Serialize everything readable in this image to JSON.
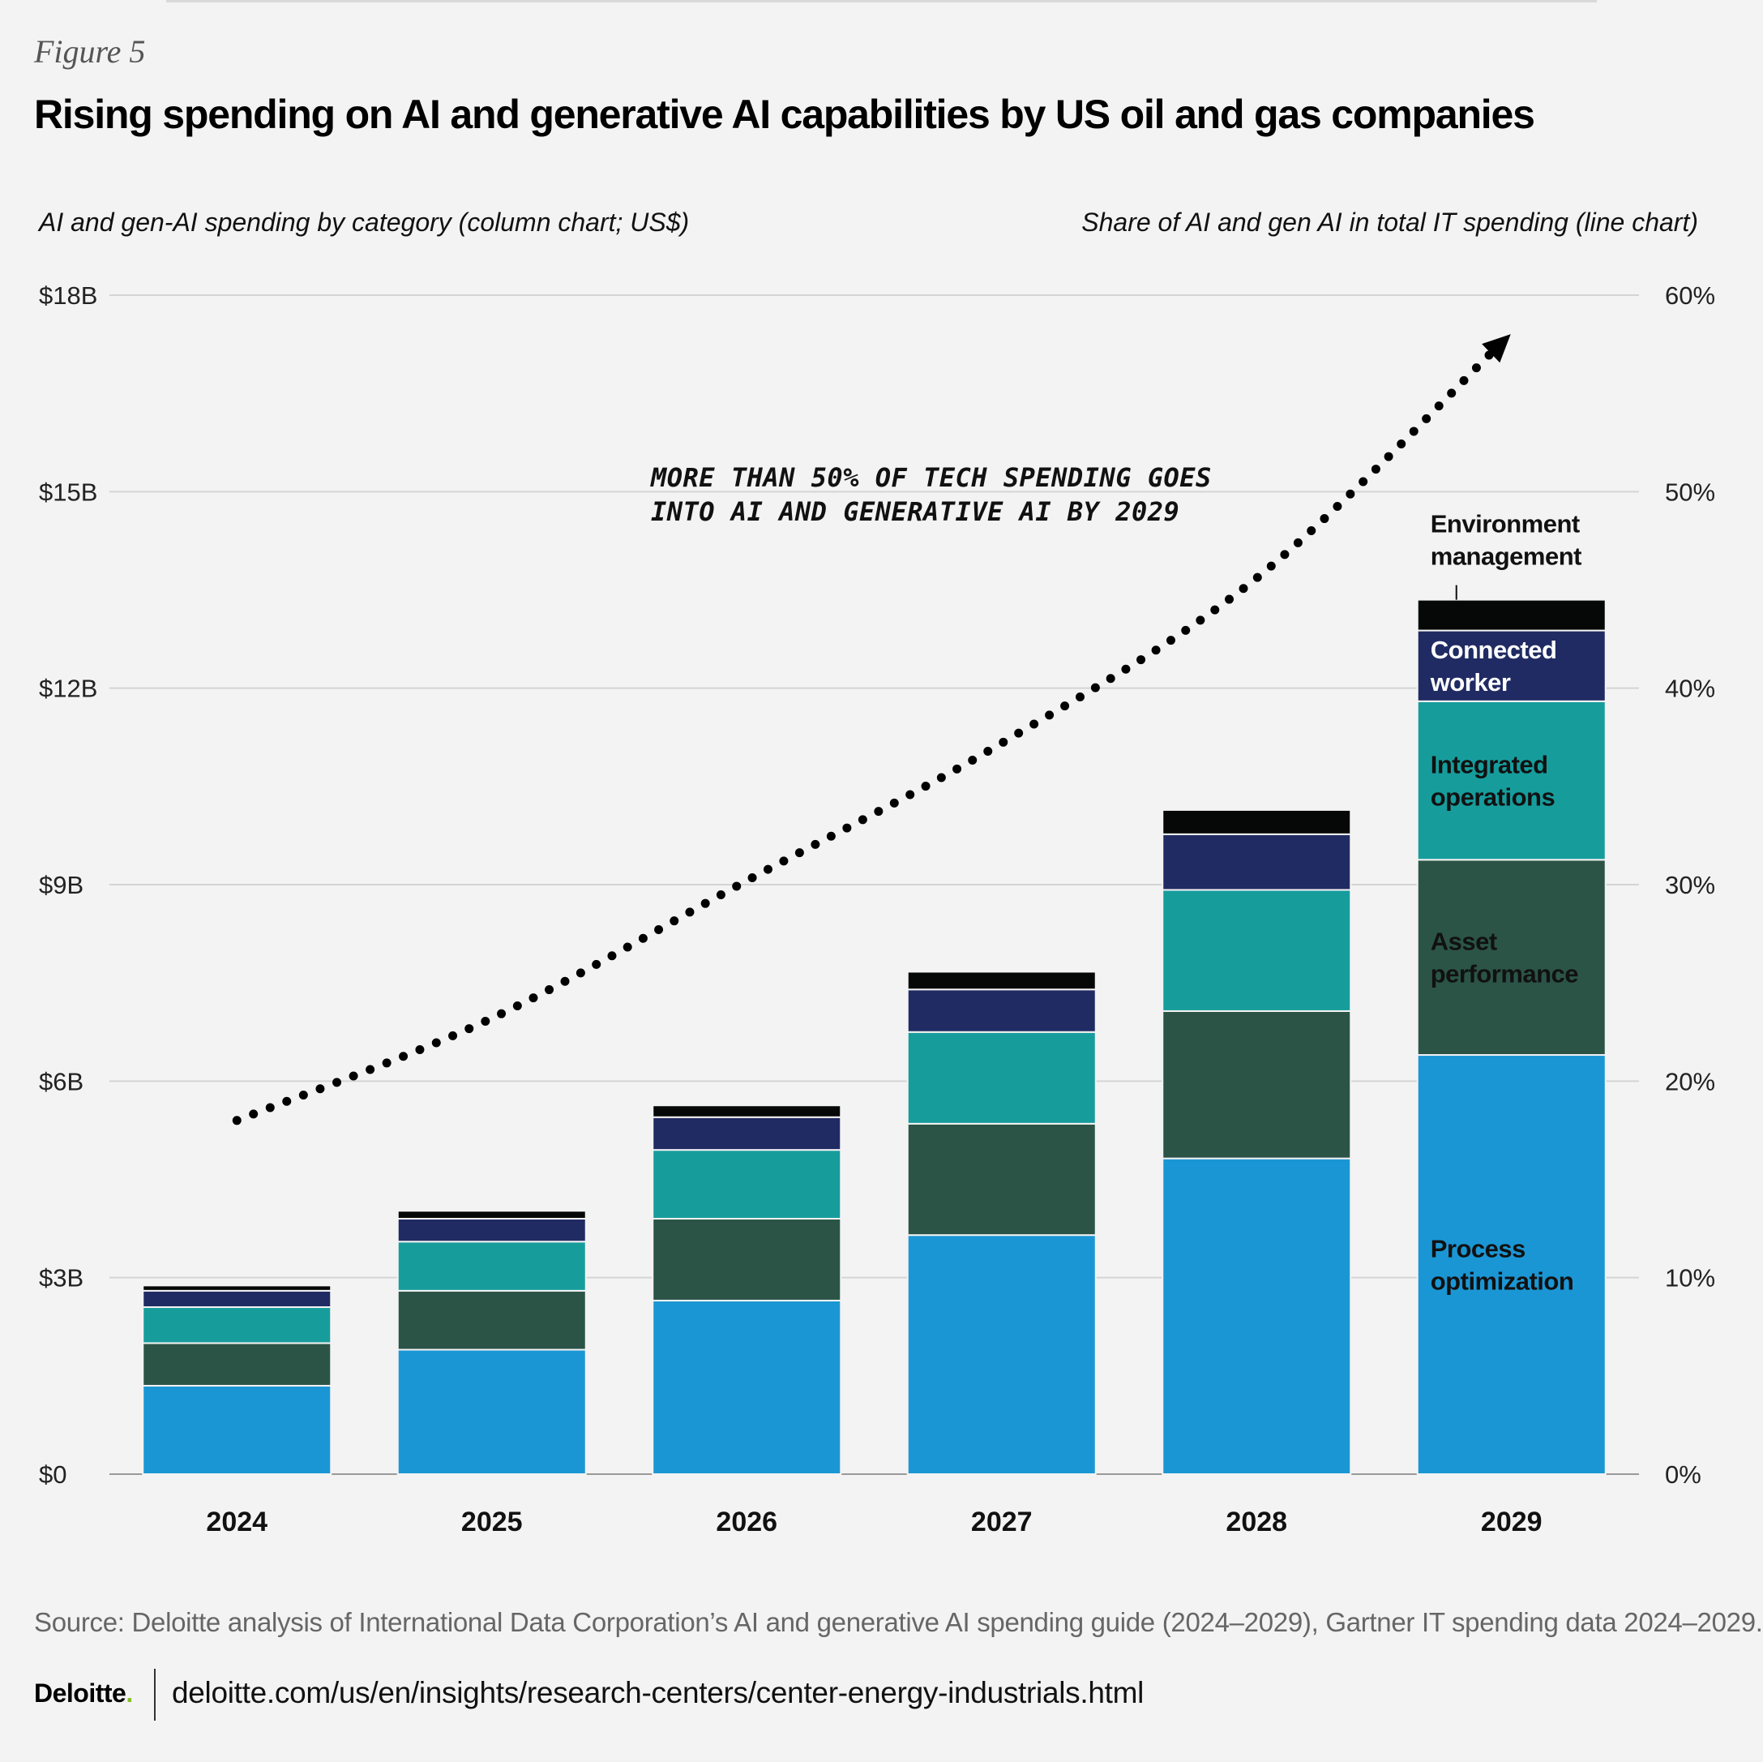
{
  "figure_label": "Figure 5",
  "title": "Rising spending on AI and generative AI capabilities by US oil and gas companies",
  "chart_data": {
    "type": "bar",
    "stacked": true,
    "categories": [
      "2024",
      "2025",
      "2026",
      "2027",
      "2028",
      "2029"
    ],
    "series": [
      {
        "name": "Process optimization",
        "color": "#1b96d4",
        "values": [
          1.35,
          1.9,
          2.65,
          3.65,
          4.82,
          6.4
        ]
      },
      {
        "name": "Asset performance",
        "color": "#2b5447",
        "values": [
          0.65,
          0.9,
          1.25,
          1.7,
          2.25,
          2.98
        ]
      },
      {
        "name": "Integrated operations",
        "color": "#179c9c",
        "values": [
          0.55,
          0.75,
          1.05,
          1.4,
          1.85,
          2.42
        ]
      },
      {
        "name": "Connected worker",
        "color": "#202b63",
        "values": [
          0.25,
          0.35,
          0.5,
          0.65,
          0.85,
          1.08
        ]
      },
      {
        "name": "Environment management",
        "color": "#060808",
        "values": [
          0.08,
          0.12,
          0.18,
          0.27,
          0.37,
          0.47
        ]
      }
    ],
    "line_series": {
      "style": "dotted",
      "end_arrow": true,
      "values": [
        18,
        23.2,
        30.2,
        37.2,
        45.6,
        57.5
      ]
    },
    "ylabel_left": "AI and gen-AI spending by category (column chart; US$)",
    "ylabel_right": "Share of AI and gen AI in total IT spending (line chart)",
    "ylim_left": [
      0,
      18
    ],
    "ylim_right": [
      0,
      60
    ],
    "yticks_left": [
      "$0",
      "$3B",
      "$6B",
      "$9B",
      "$12B",
      "$15B",
      "$18B"
    ],
    "yticks_right": [
      "0%",
      "10%",
      "20%",
      "30%",
      "40%",
      "50%",
      "60%"
    ],
    "annotation": [
      "MORE THAN 50% OF TECH SPENDING GOES",
      "INTO AI AND GENERATIVE AI BY 2029"
    ],
    "legend_placement": "inside last bar",
    "legend_labels": [
      [
        "Process",
        "optimization"
      ],
      [
        "Asset",
        "performance"
      ],
      [
        "Integrated",
        "operations"
      ],
      [
        "Connected",
        "worker"
      ],
      [
        "Environment",
        "management"
      ]
    ],
    "grid": true
  },
  "source": "Source: Deloitte analysis of International Data Corporation’s AI and generative AI spending guide (2024–2029), Gartner IT spending data 2024–2029.",
  "brand": "Deloitte",
  "brand_dot": ".",
  "url": "deloitte.com/us/en/insights/research-centers/center-energy-industrials.html"
}
